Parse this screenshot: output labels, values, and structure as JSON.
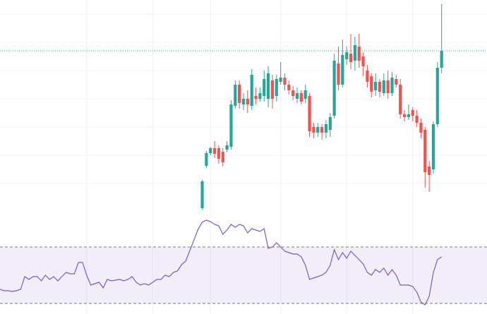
{
  "chart_data": [
    {
      "type": "candlestick",
      "x": [
        49,
        50,
        51,
        52,
        53,
        54,
        55,
        56,
        57,
        58,
        59,
        60,
        61,
        62,
        63,
        64,
        65,
        66,
        67,
        68,
        69,
        70,
        71,
        72,
        73,
        74,
        75,
        76,
        77,
        78,
        79,
        80,
        81,
        82,
        83,
        84,
        85,
        86,
        87,
        88,
        89,
        90,
        91,
        92,
        93,
        94,
        95,
        96,
        97,
        98,
        99,
        100,
        101,
        102,
        103,
        104,
        105,
        106,
        107
      ],
      "open": [
        2.5,
        32.5,
        41.5,
        45,
        45,
        42.5,
        44,
        46,
        75,
        90,
        76,
        80,
        75,
        82,
        80,
        82,
        80,
        93,
        82,
        92,
        95,
        90,
        86,
        80,
        84,
        80,
        82,
        60,
        56,
        60,
        56,
        58,
        68,
        105,
        90,
        108,
        112,
        107,
        117,
        110,
        100,
        96,
        86,
        92,
        84,
        93,
        84,
        94,
        90,
        69,
        67,
        72,
        68,
        63,
        58,
        32,
        30,
        62,
        102
      ],
      "high": [
        22.5,
        43,
        46,
        50,
        47,
        45,
        50,
        79,
        93,
        93,
        84,
        86,
        101,
        88,
        88,
        100,
        103,
        97,
        97,
        106,
        98,
        93,
        89,
        88,
        86,
        90,
        84,
        63,
        63,
        62,
        65,
        70,
        112,
        117,
        122,
        117,
        126,
        124,
        126,
        113,
        104,
        98,
        98,
        94,
        98,
        100,
        99,
        97,
        94,
        72,
        76,
        74,
        72,
        66,
        60,
        36,
        64,
        106,
        147
      ],
      "low": [
        1.5,
        31,
        40,
        38,
        34,
        32,
        42,
        44,
        73,
        73,
        72,
        70,
        72,
        76,
        78,
        78,
        74,
        73,
        78,
        90,
        86,
        83,
        79,
        77,
        76,
        77,
        53,
        52,
        53,
        51,
        52,
        53,
        66,
        86,
        88,
        104,
        101,
        100,
        102,
        96,
        88,
        81,
        82,
        81,
        82,
        80,
        82,
        88,
        66,
        64,
        65,
        64,
        60,
        52,
        17,
        14,
        27,
        60,
        98
      ],
      "close": [
        21.5,
        41.5,
        45,
        41,
        37.5,
        35,
        47,
        76,
        90,
        77,
        80,
        76,
        97,
        80,
        84,
        94,
        98,
        80,
        94,
        95,
        90,
        86,
        82,
        84,
        78,
        86,
        57,
        56,
        60,
        56,
        62,
        67,
        107,
        90,
        111,
        113,
        106,
        118,
        107,
        103,
        92,
        85,
        92,
        85,
        93,
        84,
        95,
        90,
        69,
        67,
        69,
        68,
        63,
        56,
        28,
        26,
        62,
        102,
        114
      ],
      "up_color": "#26a69a",
      "down_color": "#ef5350",
      "xlim": [
        0,
        118
      ],
      "ylim": [
        0,
        150
      ],
      "xticks": [
        21,
        37,
        51,
        68,
        84,
        100
      ],
      "yticks": [
        20,
        40,
        60,
        80,
        100,
        120,
        140
      ],
      "grid": true,
      "price_line": 114
    },
    {
      "type": "line",
      "values": [
        40,
        39,
        39,
        38.5,
        39,
        40,
        49,
        47,
        49,
        49,
        46,
        50,
        47,
        49,
        46,
        49,
        52,
        51,
        51,
        59,
        59,
        50,
        43,
        44,
        45,
        41,
        47,
        46,
        46.5,
        47,
        46,
        47,
        49,
        45,
        43,
        44,
        43,
        45,
        47,
        47,
        50,
        49,
        52,
        53,
        57.5,
        60,
        67.5,
        75,
        82.5,
        87.5,
        89,
        88,
        86,
        85,
        79,
        82,
        86,
        84,
        86,
        85,
        80,
        83,
        82,
        81,
        83,
        69,
        70,
        73,
        70,
        67,
        66,
        65,
        65,
        63,
        57,
        47,
        48,
        49,
        50,
        52,
        57,
        68,
        61,
        66,
        62,
        67,
        64,
        61,
        58,
        52,
        50,
        54,
        52,
        55,
        50,
        54,
        50,
        43,
        43,
        43,
        42,
        38,
        31,
        29,
        35,
        52,
        61,
        63
      ],
      "color": "#7e57c2",
      "band_color": "#7e57c2",
      "xlim": [
        0,
        118
      ],
      "ylim": [
        22.5,
        92.5
      ],
      "bands": [
        30,
        70
      ]
    }
  ]
}
